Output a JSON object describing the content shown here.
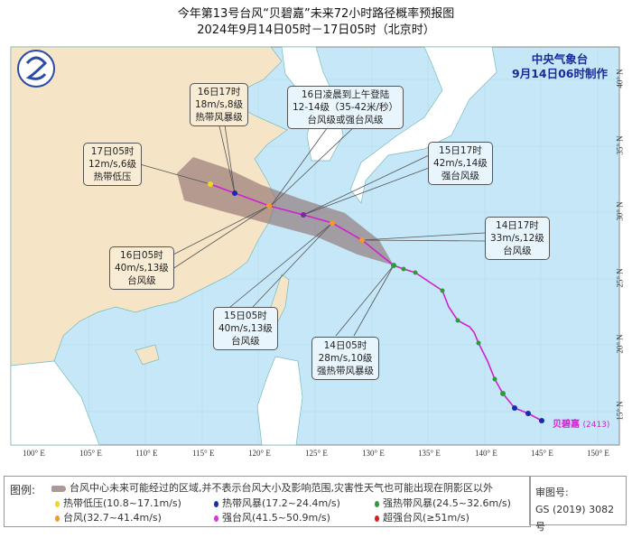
{
  "title": {
    "line1": "今年第13号台风“贝碧嘉”未来72小时路径概率预报图",
    "line2": "2024年9月14日05时－17日05时（北京时）"
  },
  "agency": {
    "name": "中央气象台",
    "issued": "9月14日06时制作"
  },
  "typhoon": {
    "name": "贝碧嘉",
    "code": "(2413)"
  },
  "axes": {
    "lon": [
      "100° E",
      "105° E",
      "110° E",
      "115° E",
      "120° E",
      "125° E",
      "130° E",
      "135° E",
      "140° E",
      "145° E",
      "150° E"
    ],
    "lat": [
      "40° N",
      "35° N",
      "30° N",
      "25° N",
      "20° N",
      "15° N"
    ]
  },
  "labels": [
    {
      "time": "16日17时",
      "wind": "18m/s,8级",
      "grade": "热带风暴级"
    },
    {
      "time": "16日凌晨到上午登陆",
      "wind": "12-14级（35-42米/秒）",
      "grade": "台风级或强台风级"
    },
    {
      "time": "17日05时",
      "wind": "12m/s,6级",
      "grade": "热带低压"
    },
    {
      "time": "15日17时",
      "wind": "42m/s,14级",
      "grade": "强台风级"
    },
    {
      "time": "14日17时",
      "wind": "33m/s,12级",
      "grade": "台风级"
    },
    {
      "time": "16日05时",
      "wind": "40m/s,13级",
      "grade": "台风级"
    },
    {
      "time": "15日05时",
      "wind": "40m/s,13级",
      "grade": "台风级"
    },
    {
      "time": "14日05时",
      "wind": "28m/s,10级",
      "grade": "强热带风暴级"
    }
  ],
  "legend": {
    "title": "图例:",
    "cone": "台风中心未来可能经过的区域,并不表示台风大小及影响范围,灾害性天气也可能出现在阴影区以外",
    "items": [
      {
        "label": "热带低压(10.8~17.1m/s)",
        "color": "#f2d81a"
      },
      {
        "label": "热带风暴(17.2~24.4m/s)",
        "color": "#1a2ab0"
      },
      {
        "label": "强热带风暴(24.5~32.6m/s)",
        "color": "#2f9a3a"
      },
      {
        "label": "台风(32.7~41.4m/s)",
        "color": "#f59a2a"
      },
      {
        "label": "强台风(41.5~50.9m/s)",
        "color": "#e030e0"
      },
      {
        "label": "超强台风(≥51m/s)",
        "color": "#d82020"
      }
    ]
  },
  "review": {
    "label": "审图号:",
    "number": "GS (2019) 3082号"
  },
  "colors": {
    "ocean": "#c6e7f8",
    "china": "#f6e4c6",
    "other_land": "#ffffff",
    "cone": "#8a6a6a",
    "track": "#d21fd2"
  }
}
